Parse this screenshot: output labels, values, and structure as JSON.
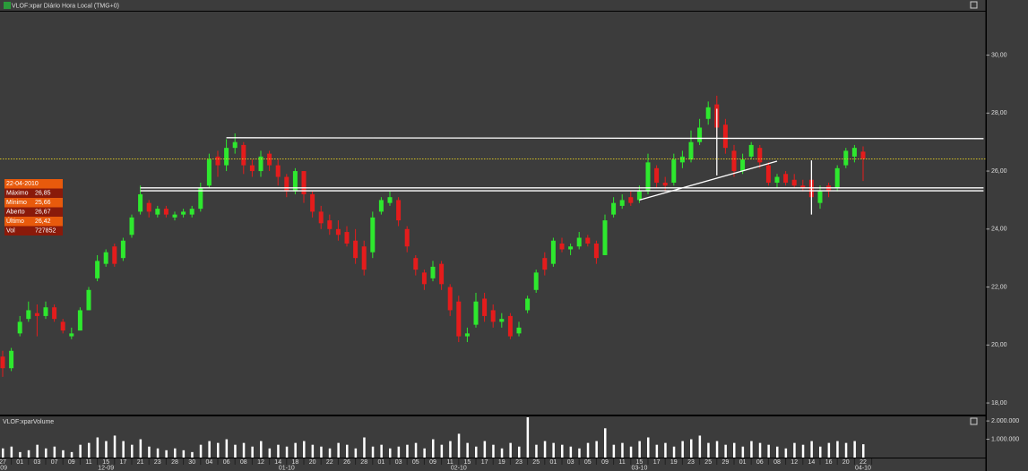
{
  "chart_data": {
    "type": "candlestick",
    "title": "VLOF:xpar Diário Hora Local (TMG+0)",
    "volume_title": "VLOF:xparVolume",
    "categories": [
      "27",
      null,
      "01",
      null,
      "03",
      null,
      "07",
      null,
      "09",
      null,
      "11",
      null,
      "15",
      null,
      "17",
      null,
      "21",
      null,
      "23",
      null,
      "28",
      null,
      "30",
      null,
      "04",
      null,
      "06",
      null,
      "08",
      null,
      "12",
      null,
      "14",
      null,
      "18",
      null,
      "20",
      null,
      "22",
      null,
      "26",
      null,
      "28",
      null,
      "01",
      null,
      "03",
      null,
      "05",
      null,
      "09",
      null,
      "11",
      null,
      "15",
      null,
      "17",
      null,
      "19",
      null,
      "23",
      null,
      "25",
      null,
      "01",
      null,
      "03",
      null,
      "05",
      null,
      "09",
      null,
      "11",
      null,
      "15",
      null,
      "17",
      null,
      "19",
      null,
      "23",
      null,
      "25",
      null,
      "29",
      null,
      "01",
      null,
      "06",
      null,
      "08",
      null,
      "12",
      null,
      "14",
      null,
      "16",
      null,
      "20",
      null,
      "22"
    ],
    "month_labels": [
      {
        "text": "-09",
        "at": 0
      },
      {
        "text": "12-09",
        "at": 12
      },
      {
        "text": "01-10",
        "at": 33
      },
      {
        "text": "02-10",
        "at": 53
      },
      {
        "text": "03-10",
        "at": 74
      },
      {
        "text": "04-10",
        "at": 100
      }
    ],
    "open": [
      19.6,
      19.2,
      20.4,
      20.9,
      21.1,
      21.0,
      21.3,
      20.8,
      20.3,
      20.5,
      21.2,
      22.3,
      22.8,
      23.4,
      23.0,
      23.8,
      24.6,
      24.9,
      24.5,
      24.7,
      24.4,
      24.5,
      24.5,
      24.7,
      25.5,
      26.5,
      26.2,
      26.8,
      26.9,
      26.2,
      26.0,
      26.6,
      26.2,
      25.8,
      25.3,
      26.0,
      25.2,
      24.6,
      24.3,
      24.0,
      23.9,
      23.6,
      23.4,
      23.2,
      24.6,
      24.9,
      25.0,
      24.0,
      23.0,
      22.5,
      22.3,
      22.8,
      22.0,
      21.5,
      20.3,
      20.7,
      21.6,
      21.2,
      20.8,
      21.0,
      20.4,
      21.2,
      21.9,
      23.0,
      22.8,
      23.5,
      23.3,
      23.4,
      23.7,
      23.5,
      23.1,
      24.5,
      24.8,
      25.1,
      25.0,
      25.3,
      26.1,
      25.6,
      25.6,
      26.3,
      26.4,
      27.0,
      27.8,
      28.3,
      27.6,
      26.7,
      26.0,
      26.5,
      26.8,
      26.2,
      25.6,
      25.9,
      25.7,
      25.5,
      25.7,
      24.9,
      25.5,
      25.4,
      26.2,
      26.5,
      26.67
    ],
    "high": [
      19.8,
      19.9,
      21.0,
      21.5,
      21.4,
      21.5,
      21.4,
      20.9,
      20.6,
      21.3,
      22.0,
      23.1,
      23.3,
      23.5,
      23.7,
      24.5,
      25.5,
      25.0,
      24.8,
      24.8,
      24.6,
      24.7,
      24.8,
      25.6,
      26.6,
      26.7,
      27.1,
      27.3,
      27.0,
      26.4,
      26.7,
      26.7,
      26.4,
      25.9,
      26.1,
      26.0,
      25.3,
      24.8,
      24.5,
      24.3,
      24.1,
      24.0,
      23.6,
      24.6,
      25.1,
      25.3,
      25.1,
      24.1,
      23.1,
      22.6,
      22.9,
      22.9,
      22.1,
      21.7,
      20.6,
      21.8,
      21.8,
      21.4,
      21.1,
      21.1,
      20.8,
      21.7,
      22.6,
      23.2,
      23.7,
      23.7,
      23.5,
      23.9,
      23.8,
      23.6,
      24.5,
      25.1,
      25.2,
      25.3,
      25.5,
      26.6,
      26.2,
      25.8,
      26.6,
      26.7,
      27.4,
      27.8,
      28.4,
      28.6,
      27.8,
      26.9,
      26.6,
      27.0,
      26.9,
      26.3,
      25.9,
      26.0,
      25.9,
      25.7,
      25.9,
      25.5,
      25.6,
      26.2,
      26.8,
      26.9,
      26.85
    ],
    "low": [
      18.9,
      19.1,
      20.3,
      20.8,
      20.3,
      20.9,
      20.8,
      20.4,
      20.2,
      20.5,
      21.2,
      22.2,
      22.7,
      22.7,
      22.9,
      23.7,
      24.5,
      24.4,
      24.4,
      24.4,
      24.3,
      24.4,
      24.4,
      24.6,
      25.4,
      25.8,
      26.0,
      26.6,
      25.9,
      25.8,
      25.8,
      26.0,
      25.5,
      25.1,
      25.2,
      24.9,
      24.4,
      24.0,
      23.8,
      23.6,
      23.4,
      22.8,
      22.4,
      23.0,
      24.5,
      24.8,
      24.1,
      23.2,
      22.4,
      21.9,
      22.2,
      21.9,
      21.0,
      20.1,
      20.1,
      20.6,
      20.8,
      20.6,
      20.6,
      20.2,
      20.3,
      21.1,
      21.8,
      22.4,
      22.7,
      23.2,
      23.1,
      23.3,
      23.4,
      22.8,
      23.1,
      24.4,
      24.7,
      24.8,
      24.9,
      25.2,
      25.4,
      25.3,
      25.5,
      26.1,
      26.3,
      26.9,
      27.6,
      27.2,
      26.6,
      25.8,
      25.9,
      26.4,
      26.1,
      25.5,
      25.4,
      25.5,
      25.4,
      25.3,
      25.0,
      24.7,
      25.1,
      25.3,
      26.1,
      26.3,
      25.66
    ],
    "close": [
      19.2,
      19.8,
      20.8,
      21.2,
      21.0,
      21.3,
      20.9,
      20.5,
      20.4,
      21.2,
      21.9,
      22.9,
      23.2,
      22.8,
      23.6,
      24.4,
      25.2,
      24.6,
      24.7,
      24.5,
      24.5,
      24.6,
      24.7,
      25.4,
      26.4,
      26.2,
      26.8,
      27.0,
      26.2,
      26.0,
      26.5,
      26.2,
      25.8,
      25.3,
      26.0,
      25.2,
      24.6,
      24.2,
      24.0,
      23.8,
      23.5,
      23.0,
      22.6,
      24.4,
      25.0,
      25.1,
      24.3,
      23.4,
      22.6,
      22.1,
      22.7,
      22.1,
      21.2,
      20.3,
      20.4,
      21.5,
      21.0,
      20.8,
      20.9,
      20.3,
      20.6,
      21.6,
      22.5,
      22.6,
      23.6,
      23.3,
      23.4,
      23.7,
      23.5,
      23.0,
      24.3,
      24.9,
      25.0,
      24.9,
      25.3,
      26.3,
      25.6,
      25.5,
      26.4,
      26.5,
      27.0,
      27.5,
      28.2,
      27.5,
      26.8,
      26.0,
      26.4,
      26.9,
      26.3,
      25.6,
      25.8,
      25.6,
      25.5,
      25.4,
      25.1,
      25.3,
      25.3,
      26.1,
      26.7,
      26.8,
      26.42
    ],
    "volume": [
      500000,
      600000,
      300000,
      400000,
      700000,
      500000,
      600000,
      400000,
      300000,
      700000,
      800000,
      1100000,
      900000,
      1200000,
      900000,
      700000,
      1000000,
      600000,
      500000,
      400000,
      500000,
      400000,
      300000,
      700000,
      900000,
      800000,
      1000000,
      700000,
      800000,
      600000,
      900000,
      500000,
      700000,
      600000,
      800000,
      900000,
      700000,
      600000,
      500000,
      800000,
      700000,
      500000,
      1100000,
      600000,
      700000,
      500000,
      600000,
      700000,
      800000,
      500000,
      1000000,
      700000,
      900000,
      1300000,
      800000,
      600000,
      900000,
      700000,
      500000,
      800000,
      600000,
      2200000,
      700000,
      900000,
      800000,
      700000,
      600000,
      500000,
      800000,
      900000,
      1600000,
      700000,
      800000,
      600000,
      900000,
      1100000,
      700000,
      800000,
      600000,
      900000,
      1000000,
      1200000,
      800000,
      900000,
      700000,
      800000,
      600000,
      900000,
      800000,
      700000,
      600000,
      500000,
      800000,
      700000,
      900000,
      600000,
      800000,
      900000,
      800000,
      900000,
      727852
    ],
    "up_color": "#2ee82e",
    "down_color": "#e41c1c",
    "volume_color": "#ffffff",
    "ylim": [
      17.6,
      31.5
    ],
    "yticks": [
      {
        "value": 18,
        "label": "18,00"
      },
      {
        "value": 20,
        "label": "20,00"
      },
      {
        "value": 22,
        "label": "22,00"
      },
      {
        "value": 24,
        "label": "24,00"
      },
      {
        "value": 26,
        "label": "26,00"
      },
      {
        "value": 28,
        "label": "28,00"
      },
      {
        "value": 30,
        "label": "30,00"
      }
    ],
    "volume_lim": [
      0,
      2250000
    ],
    "volume_ticks": [
      {
        "value": 1000000,
        "label": "1.000.000"
      },
      {
        "value": 2000000,
        "label": "2.000.000"
      }
    ],
    "trendlines": [
      {
        "x": [
          26,
          114
        ],
        "y": [
          27.15,
          27.12
        ]
      },
      {
        "x": [
          16,
          114
        ],
        "y": [
          25.42,
          25.42
        ]
      },
      {
        "x": [
          16,
          114
        ],
        "y": [
          25.32,
          25.32
        ]
      },
      {
        "x": [
          74,
          90
        ],
        "y": [
          25.0,
          26.34
        ]
      },
      {
        "x": [
          83,
          83
        ],
        "y": [
          28.15,
          25.85
        ]
      },
      {
        "x": [
          94,
          94
        ],
        "y": [
          26.37,
          24.5
        ]
      }
    ],
    "info_box": {
      "date": "22-04-2010",
      "rows": [
        [
          "Máximo",
          "26,85"
        ],
        [
          "Mínimo",
          "25,66"
        ],
        [
          "Aberto",
          "26,67"
        ],
        [
          "Último",
          "26,42"
        ],
        [
          "Vol",
          "727852"
        ]
      ]
    }
  }
}
